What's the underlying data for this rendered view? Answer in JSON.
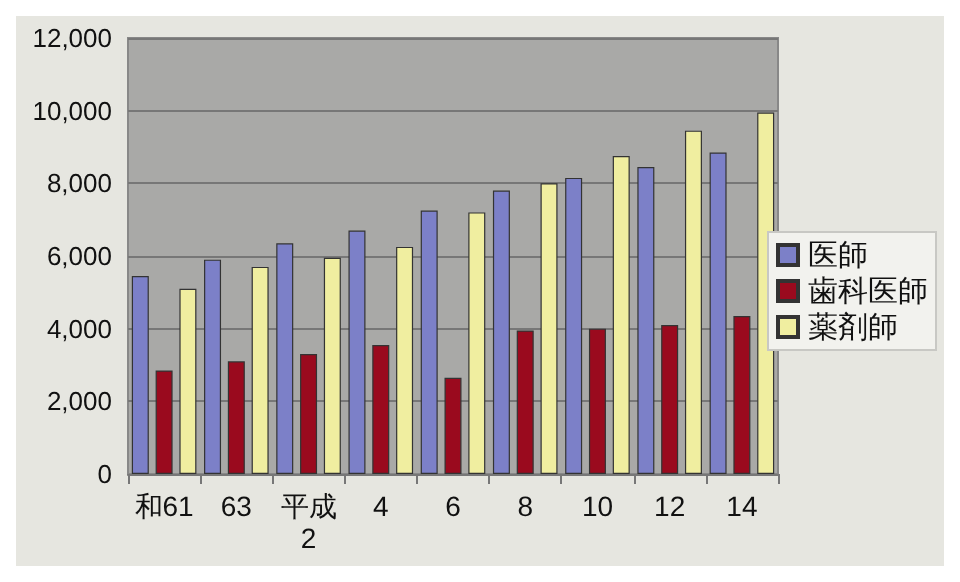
{
  "chart_data": {
    "type": "bar",
    "categories": [
      "和61",
      "63",
      "平成\n2",
      "4",
      "6",
      "8",
      "10",
      "12",
      "14"
    ],
    "series": [
      {
        "name": "医師",
        "color": "#7c80c8",
        "values": [
          5450,
          5900,
          6350,
          6700,
          7250,
          7800,
          8150,
          8450,
          8850
        ]
      },
      {
        "name": "歯科医師",
        "color": "#9a0a1e",
        "values": [
          2850,
          3100,
          3300,
          3550,
          2650,
          3950,
          4000,
          4100,
          4350
        ]
      },
      {
        "name": "薬剤師",
        "color": "#f0eea0",
        "values": [
          5100,
          5700,
          5950,
          6250,
          7200,
          8000,
          8750,
          9450,
          9950
        ]
      }
    ],
    "ylim": [
      0,
      12000
    ],
    "yticks": [
      0,
      {
        "value": 2000,
        "label": "2,000"
      },
      {
        "value": 4000,
        "label": "4,000"
      },
      {
        "value": 6000,
        "label": "6,000"
      },
      {
        "value": 8000,
        "label": "8,000"
      },
      {
        "value": 10000,
        "label": "10,000"
      },
      {
        "value": 12000,
        "label": "12,000"
      }
    ],
    "grid": "y",
    "legend": "right"
  }
}
